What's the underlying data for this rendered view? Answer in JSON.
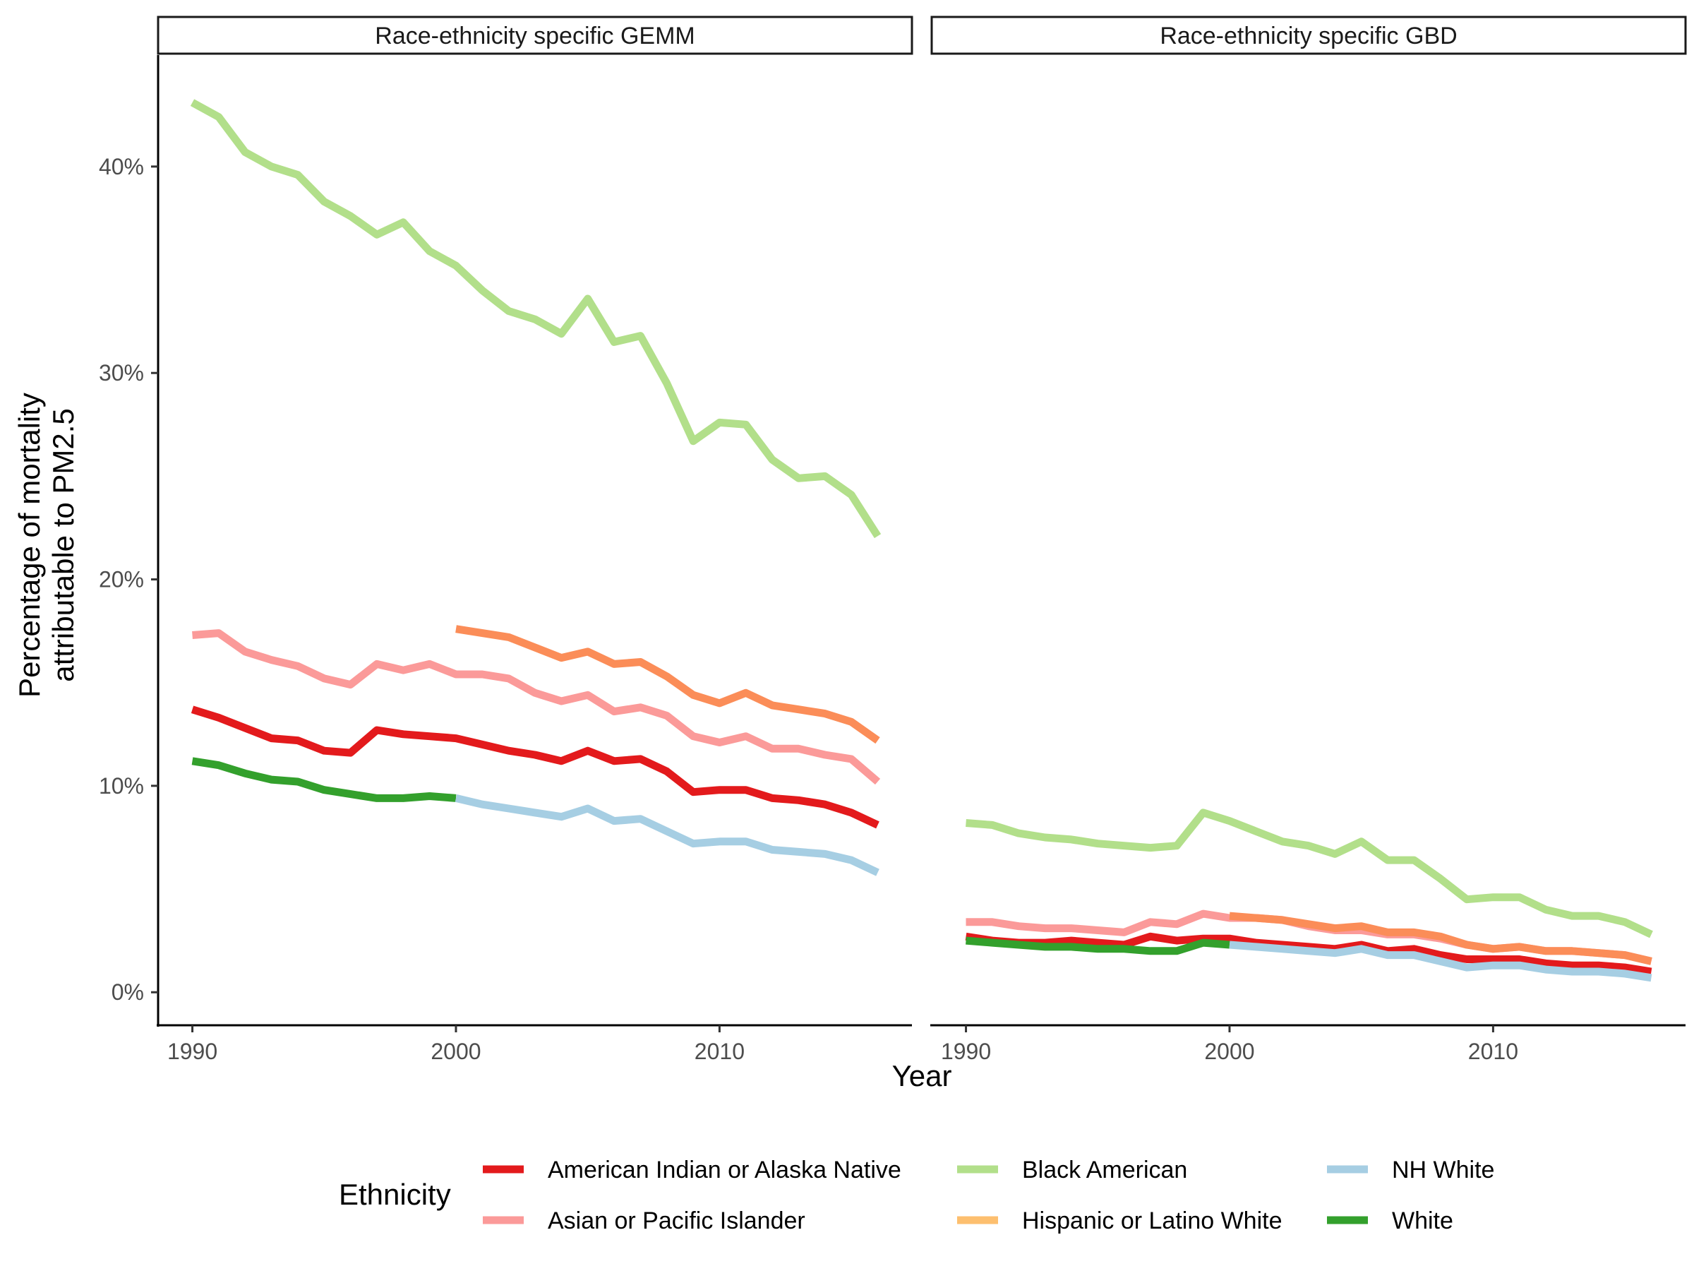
{
  "chart_data": {
    "type": "line",
    "xlabel": "Year",
    "ylabel_line1": "Percentage of mortality",
    "ylabel_line2": "attributable to PM2.5",
    "ylim": [
      -0.016,
      0.454
    ],
    "yticks": [
      0,
      0.1,
      0.2,
      0.3,
      0.4
    ],
    "ytick_labels": [
      "0%",
      "10%",
      "20%",
      "30%",
      "40%"
    ],
    "xlim": [
      1988.7,
      2017.3
    ],
    "xticks": [
      1990,
      2000,
      2010
    ],
    "xtick_labels": [
      "1990",
      "2000",
      "2010"
    ],
    "grid": false,
    "legend_title": "Ethnicity",
    "legend_position": "bottom",
    "legend": [
      {
        "label": "American Indian or Alaska Native",
        "color": "#e31a1c"
      },
      {
        "label": "Asian or Pacific Islander",
        "color": "#fb9a99"
      },
      {
        "label": "Black American",
        "color": "#b2df8a"
      },
      {
        "label": "Hispanic or Latino White",
        "color": "#fdbf6f"
      },
      {
        "label": "NH White",
        "color": "#a6cee3"
      },
      {
        "label": "White",
        "color": "#33a02c"
      }
    ],
    "panels": [
      {
        "title": "Race-ethnicity specific GEMM",
        "series": [
          {
            "name": "Black American",
            "color": "#b2df8a",
            "x_start": 1990,
            "values": [
              0.431,
              0.424,
              0.407,
              0.4,
              0.396,
              0.383,
              0.376,
              0.367,
              0.373,
              0.359,
              0.352,
              0.34,
              0.33,
              0.326,
              0.319,
              0.336,
              0.315,
              0.318,
              0.295,
              0.267,
              0.276,
              0.275,
              0.258,
              0.249,
              0.25,
              0.241,
              0.221
            ]
          },
          {
            "name": "Hispanic or Latino White",
            "color": "#fb8d58",
            "x_start": 2000,
            "values": [
              0.176,
              0.174,
              0.172,
              0.167,
              0.162,
              0.165,
              0.159,
              0.16,
              0.153,
              0.144,
              0.14,
              0.145,
              0.139,
              0.137,
              0.135,
              0.131,
              0.122
            ]
          },
          {
            "name": "Asian or Pacific Islander",
            "color": "#fb9a99",
            "x_start": 1990,
            "values": [
              0.173,
              0.174,
              0.165,
              0.161,
              0.158,
              0.152,
              0.149,
              0.159,
              0.156,
              0.159,
              0.154,
              0.154,
              0.152,
              0.145,
              0.141,
              0.144,
              0.136,
              0.138,
              0.134,
              0.124,
              0.121,
              0.124,
              0.118,
              0.118,
              0.115,
              0.113,
              0.102
            ]
          },
          {
            "name": "American Indian or Alaska Native",
            "color": "#e31a1c",
            "x_start": 1990,
            "values": [
              0.137,
              0.133,
              0.128,
              0.123,
              0.122,
              0.117,
              0.116,
              0.127,
              0.125,
              0.124,
              0.123,
              0.12,
              0.117,
              0.115,
              0.112,
              0.117,
              0.112,
              0.113,
              0.107,
              0.097,
              0.098,
              0.098,
              0.094,
              0.093,
              0.091,
              0.087,
              0.081
            ]
          },
          {
            "name": "White",
            "color": "#33a02c",
            "x_start": 1990,
            "values": [
              0.112,
              0.11,
              0.106,
              0.103,
              0.102,
              0.098,
              0.096,
              0.094,
              0.094,
              0.095,
              0.094
            ]
          },
          {
            "name": "NH White",
            "color": "#a6cee3",
            "x_start": 2000,
            "values": [
              0.094,
              0.091,
              0.089,
              0.087,
              0.085,
              0.089,
              0.083,
              0.084,
              0.078,
              0.072,
              0.073,
              0.073,
              0.069,
              0.068,
              0.067,
              0.064,
              0.058
            ]
          }
        ]
      },
      {
        "title": "Race-ethnicity specific GBD",
        "series": [
          {
            "name": "Black American",
            "color": "#b2df8a",
            "x_start": 1990,
            "values": [
              0.082,
              0.081,
              0.077,
              0.075,
              0.074,
              0.072,
              0.071,
              0.07,
              0.071,
              0.087,
              0.083,
              0.078,
              0.073,
              0.071,
              0.067,
              0.073,
              0.064,
              0.064,
              0.055,
              0.045,
              0.046,
              0.046,
              0.04,
              0.037,
              0.037,
              0.034,
              0.028
            ]
          },
          {
            "name": "Asian or Pacific Islander",
            "color": "#fb9a99",
            "x_start": 1990,
            "values": [
              0.034,
              0.034,
              0.032,
              0.031,
              0.031,
              0.03,
              0.029,
              0.034,
              0.033,
              0.038,
              0.036,
              0.036,
              0.035,
              0.032,
              0.03,
              0.03,
              0.028,
              0.028,
              0.026,
              0.023,
              0.021,
              0.022,
              0.02,
              0.02,
              0.019,
              0.018,
              0.015
            ]
          },
          {
            "name": "Hispanic or Latino White",
            "color": "#fb8d58",
            "x_start": 2000,
            "values": [
              0.037,
              0.036,
              0.035,
              0.033,
              0.031,
              0.032,
              0.029,
              0.029,
              0.027,
              0.023,
              0.021,
              0.022,
              0.02,
              0.02,
              0.019,
              0.018,
              0.015
            ]
          },
          {
            "name": "American Indian or Alaska Native",
            "color": "#e31a1c",
            "x_start": 1990,
            "values": [
              0.027,
              0.025,
              0.024,
              0.024,
              0.025,
              0.024,
              0.023,
              0.027,
              0.025,
              0.026,
              0.026,
              0.024,
              0.023,
              0.022,
              0.021,
              0.023,
              0.02,
              0.021,
              0.018,
              0.016,
              0.016,
              0.016,
              0.014,
              0.013,
              0.013,
              0.012,
              0.01
            ]
          },
          {
            "name": "White",
            "color": "#33a02c",
            "x_start": 1990,
            "values": [
              0.025,
              0.024,
              0.023,
              0.022,
              0.022,
              0.021,
              0.021,
              0.02,
              0.02,
              0.024,
              0.023
            ]
          },
          {
            "name": "NH White",
            "color": "#a6cee3",
            "x_start": 2000,
            "values": [
              0.023,
              0.022,
              0.021,
              0.02,
              0.019,
              0.021,
              0.018,
              0.018,
              0.015,
              0.012,
              0.013,
              0.013,
              0.011,
              0.01,
              0.01,
              0.009,
              0.007
            ]
          }
        ]
      }
    ]
  }
}
